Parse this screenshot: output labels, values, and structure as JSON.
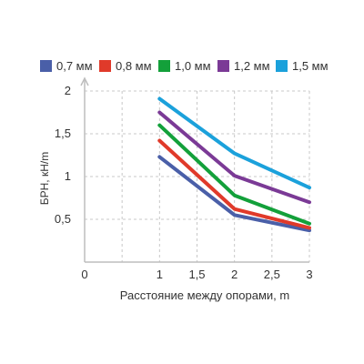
{
  "chart_data": {
    "type": "line",
    "xlabel": "Расстояние между опорами, m",
    "ylabel": "БРН, кН/m",
    "xlim": [
      0,
      3
    ],
    "ylim": [
      0,
      2
    ],
    "x_ticks": [
      {
        "value": 0,
        "label": "0"
      },
      {
        "value": 0.5,
        "label": ""
      },
      {
        "value": 1,
        "label": "1"
      },
      {
        "value": 1.5,
        "label": "1,5"
      },
      {
        "value": 2,
        "label": "2"
      },
      {
        "value": 2.5,
        "label": "2,5"
      },
      {
        "value": 3,
        "label": "3"
      }
    ],
    "y_ticks": [
      {
        "value": 0.5,
        "label": "0,5"
      },
      {
        "value": 1,
        "label": "1"
      },
      {
        "value": 1.5,
        "label": "1,5"
      },
      {
        "value": 2,
        "label": "2"
      }
    ],
    "grid": true,
    "legend_position": "top",
    "series": [
      {
        "name": "0,7 мм",
        "color": "#4a5fa8",
        "x": [
          1,
          2,
          3
        ],
        "y": [
          1.23,
          0.55,
          0.37
        ]
      },
      {
        "name": "0,8 мм",
        "color": "#e03a2a",
        "x": [
          1,
          2,
          3
        ],
        "y": [
          1.42,
          0.62,
          0.4
        ]
      },
      {
        "name": "1,0 мм",
        "color": "#13a03a",
        "x": [
          1,
          2,
          3
        ],
        "y": [
          1.6,
          0.78,
          0.45
        ]
      },
      {
        "name": "1,2 мм",
        "color": "#7b3a96",
        "x": [
          1,
          2,
          3
        ],
        "y": [
          1.75,
          1.01,
          0.7
        ]
      },
      {
        "name": "1,5 мм",
        "color": "#1ba1db",
        "x": [
          1,
          2,
          3
        ],
        "y": [
          1.91,
          1.27,
          0.87
        ]
      }
    ]
  }
}
